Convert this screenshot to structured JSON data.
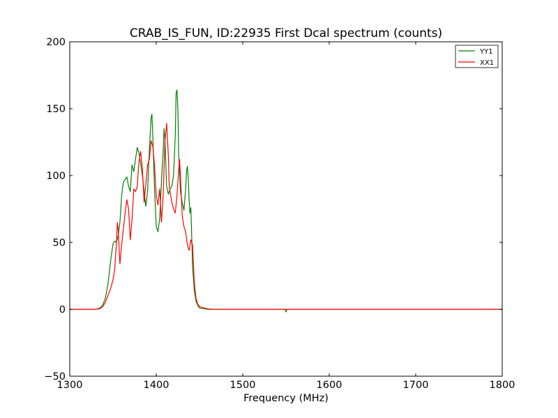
{
  "chart_data": {
    "type": "line",
    "title": "CRAB_IS_FUN, ID:22935 First Dcal spectrum (counts)",
    "xlabel": "Frequency (MHz)",
    "ylabel": "",
    "xlim": [
      1300,
      1800
    ],
    "ylim": [
      -50,
      200
    ],
    "xticks": [
      1300,
      1400,
      1500,
      1600,
      1700,
      1800
    ],
    "xtick_labels": [
      "1300",
      "1400",
      "1500",
      "1600",
      "1700",
      "1800"
    ],
    "yticks": [
      -50,
      0,
      50,
      100,
      150,
      200
    ],
    "ytick_labels": [
      "−50",
      "0",
      "50",
      "100",
      "150",
      "200"
    ],
    "grid": false,
    "legend_position": "top-right",
    "series": [
      {
        "name": "YY1",
        "color": "#008000",
        "x": [
          1300,
          1330,
          1335,
          1338,
          1341,
          1344,
          1347,
          1350,
          1352,
          1354,
          1356,
          1358,
          1360,
          1362,
          1364,
          1366,
          1368,
          1370,
          1372,
          1374,
          1376,
          1378,
          1380,
          1382,
          1384,
          1386,
          1388,
          1390,
          1392,
          1394,
          1395,
          1396,
          1398,
          1400,
          1402,
          1404,
          1406,
          1408,
          1409,
          1410,
          1412,
          1414,
          1416,
          1418,
          1420,
          1422,
          1423,
          1424,
          1425,
          1426,
          1428,
          1430,
          1432,
          1434,
          1435,
          1436,
          1437,
          1438,
          1439,
          1440,
          1441,
          1442,
          1444,
          1446,
          1448,
          1450,
          1455,
          1460,
          1465,
          1470,
          1500,
          1549,
          1550,
          1551,
          1600,
          1700,
          1800
        ],
        "values": [
          0,
          0,
          1,
          3,
          8,
          18,
          35,
          49,
          51,
          50,
          55,
          65,
          85,
          95,
          97,
          99,
          92,
          88,
          108,
          103,
          112,
          121,
          117,
          109,
          100,
          88,
          77,
          88,
          118,
          143,
          146,
          130,
          90,
          62,
          58,
          68,
          95,
          118,
          135,
          128,
          92,
          86,
          90,
          92,
          100,
          130,
          162,
          164,
          150,
          115,
          88,
          80,
          74,
          90,
          103,
          107,
          98,
          82,
          72,
          76,
          55,
          32,
          14,
          6,
          3,
          1,
          0.5,
          0,
          0,
          0,
          0,
          0,
          -2,
          0,
          0,
          0,
          0
        ]
      },
      {
        "name": "XX1",
        "color": "#ff0000",
        "x": [
          1300,
          1330,
          1335,
          1338,
          1341,
          1344,
          1347,
          1350,
          1352,
          1354,
          1355,
          1356,
          1358,
          1360,
          1362,
          1364,
          1366,
          1368,
          1370,
          1372,
          1374,
          1376,
          1378,
          1380,
          1382,
          1384,
          1386,
          1388,
          1390,
          1392,
          1394,
          1396,
          1398,
          1400,
          1402,
          1404,
          1406,
          1408,
          1410,
          1412,
          1414,
          1415,
          1416,
          1418,
          1420,
          1422,
          1424,
          1426,
          1427,
          1428,
          1430,
          1432,
          1434,
          1436,
          1438,
          1440,
          1442,
          1444,
          1446,
          1448,
          1450,
          1455,
          1460,
          1465,
          1470,
          1500,
          1600,
          1700,
          1800
        ],
        "values": [
          0,
          0,
          0.5,
          2,
          5,
          10,
          15,
          22,
          30,
          50,
          65,
          60,
          34,
          48,
          60,
          72,
          82,
          75,
          52,
          67,
          90,
          88,
          92,
          110,
          118,
          105,
          80,
          94,
          108,
          112,
          126,
          122,
          108,
          85,
          78,
          90,
          65,
          85,
          125,
          139,
          115,
          92,
          88,
          80,
          75,
          72,
          85,
          105,
          112,
          100,
          70,
          62,
          58,
          48,
          44,
          52,
          48,
          20,
          8,
          4,
          2,
          1,
          0.3,
          0,
          0,
          0,
          0,
          0,
          0
        ]
      }
    ]
  }
}
